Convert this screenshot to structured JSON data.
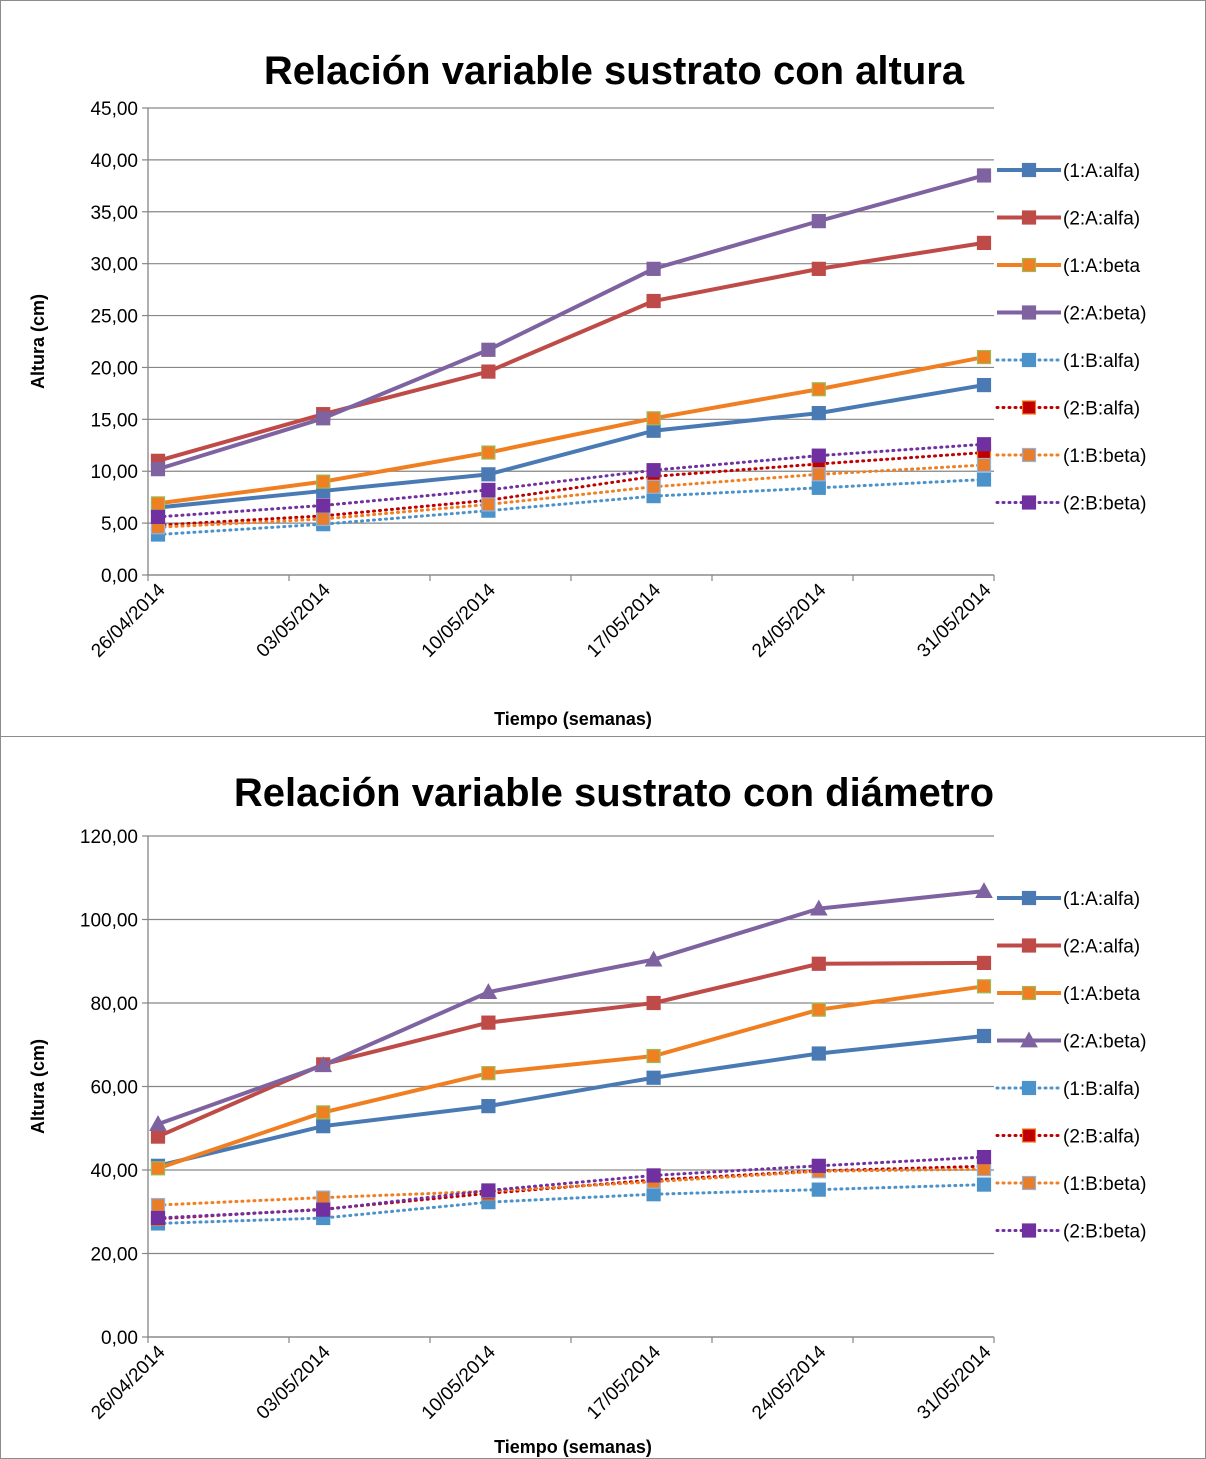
{
  "chart_data": [
    {
      "type": "line",
      "title": "Relación variable sustrato con altura",
      "xlabel": "Tiempo (semanas)",
      "ylabel": "Altura (cm)",
      "categories": [
        "26/04/2014",
        "03/05/2014",
        "10/05/2014",
        "17/05/2014",
        "24/05/2014",
        "31/05/2014"
      ],
      "ylim": [
        0,
        45
      ],
      "yticks": [
        "0,00",
        "5,00",
        "10,00",
        "15,00",
        "20,00",
        "25,00",
        "30,00",
        "35,00",
        "40,00",
        "45,00"
      ],
      "grid": true,
      "legend": "right",
      "series": [
        {
          "name": "(1:A:alfa)",
          "color": "#4a7ab4",
          "style": "solid",
          "marker": "square",
          "values": [
            6.5,
            8.1,
            9.7,
            13.9,
            15.6,
            18.3
          ]
        },
        {
          "name": "(2:A:alfa)",
          "color": "#be4b48",
          "style": "solid",
          "marker": "square",
          "values": [
            11.0,
            15.5,
            19.6,
            26.4,
            29.5,
            32.0
          ]
        },
        {
          "name": "(1:A:beta",
          "color": "#f07f22",
          "style": "solid",
          "marker": "square",
          "markerFill": "#f07f22",
          "markerStroke": "#9bbb59",
          "values": [
            6.9,
            9.0,
            11.8,
            15.1,
            17.9,
            21.0
          ]
        },
        {
          "name": "(2:A:beta)",
          "color": "#7e63a0",
          "style": "solid",
          "marker": "square",
          "values": [
            10.2,
            15.1,
            21.7,
            29.5,
            34.1,
            38.5
          ]
        },
        {
          "name": "(1:B:alfa)",
          "color": "#4a92c9",
          "style": "dotted",
          "marker": "square",
          "values": [
            3.9,
            4.9,
            6.2,
            7.6,
            8.4,
            9.2
          ]
        },
        {
          "name": "(2:B:alfa)",
          "color": "#c00000",
          "style": "dotted",
          "marker": "square",
          "markerFill": "#c00000",
          "markerStroke": "#f07f22",
          "values": [
            4.8,
            5.7,
            7.2,
            9.5,
            10.7,
            11.8
          ]
        },
        {
          "name": "(1:B:beta)",
          "color": "#f07f22",
          "style": "dotted",
          "marker": "square",
          "markerFill": "#e87d2a",
          "markerStroke": "#8eb4e3",
          "values": [
            4.6,
            5.4,
            6.8,
            8.5,
            9.7,
            10.6
          ]
        },
        {
          "name": "(2:B:beta)",
          "color": "#7030a0",
          "style": "dotted",
          "marker": "square",
          "values": [
            5.6,
            6.7,
            8.2,
            10.1,
            11.5,
            12.6
          ]
        }
      ]
    },
    {
      "type": "line",
      "title": "Relación variable sustrato con diámetro",
      "xlabel": "Tiempo (semanas)",
      "ylabel": "Altura (cm)",
      "categories": [
        "26/04/2014",
        "03/05/2014",
        "10/05/2014",
        "17/05/2014",
        "24/05/2014",
        "31/05/2014"
      ],
      "ylim": [
        0,
        120
      ],
      "yticks": [
        "0,00",
        "20,00",
        "40,00",
        "60,00",
        "80,00",
        "100,00",
        "120,00"
      ],
      "grid": true,
      "legend": "right",
      "series": [
        {
          "name": "(1:A:alfa)",
          "color": "#4a7ab4",
          "style": "solid",
          "marker": "square",
          "values": [
            41.0,
            50.5,
            55.3,
            62.1,
            67.9,
            72.1
          ]
        },
        {
          "name": "(2:A:alfa)",
          "color": "#be4b48",
          "style": "solid",
          "marker": "square",
          "values": [
            48.0,
            65.3,
            75.3,
            80.0,
            89.4,
            89.6
          ]
        },
        {
          "name": "(1:A:beta",
          "color": "#f07f22",
          "style": "solid",
          "marker": "square",
          "markerFill": "#f07f22",
          "markerStroke": "#9bbb59",
          "values": [
            40.4,
            53.8,
            63.2,
            67.3,
            78.4,
            84.0
          ]
        },
        {
          "name": "(2:A:beta)",
          "color": "#7e63a0",
          "style": "solid",
          "marker": "triangle",
          "values": [
            51.0,
            65.1,
            82.6,
            90.4,
            102.6,
            106.8
          ]
        },
        {
          "name": "(1:B:alfa)",
          "color": "#4a92c9",
          "style": "dotted",
          "marker": "square",
          "values": [
            27.2,
            28.5,
            32.3,
            34.2,
            35.3,
            36.5
          ]
        },
        {
          "name": "(2:B:alfa)",
          "color": "#c00000",
          "style": "dotted",
          "marker": "square",
          "markerFill": "#c00000",
          "markerStroke": "#f07f22",
          "values": [
            28.3,
            30.6,
            34.4,
            37.6,
            39.8,
            40.9
          ]
        },
        {
          "name": "(1:B:beta)",
          "color": "#f07f22",
          "style": "dotted",
          "marker": "square",
          "markerFill": "#e87d2a",
          "markerStroke": "#8eb4e3",
          "values": [
            31.6,
            33.4,
            34.9,
            37.2,
            39.7,
            40.2
          ]
        },
        {
          "name": "(2:B:beta)",
          "color": "#7030a0",
          "style": "dotted",
          "marker": "square",
          "values": [
            28.5,
            30.5,
            35.1,
            38.7,
            41.0,
            43.1
          ]
        }
      ]
    }
  ]
}
